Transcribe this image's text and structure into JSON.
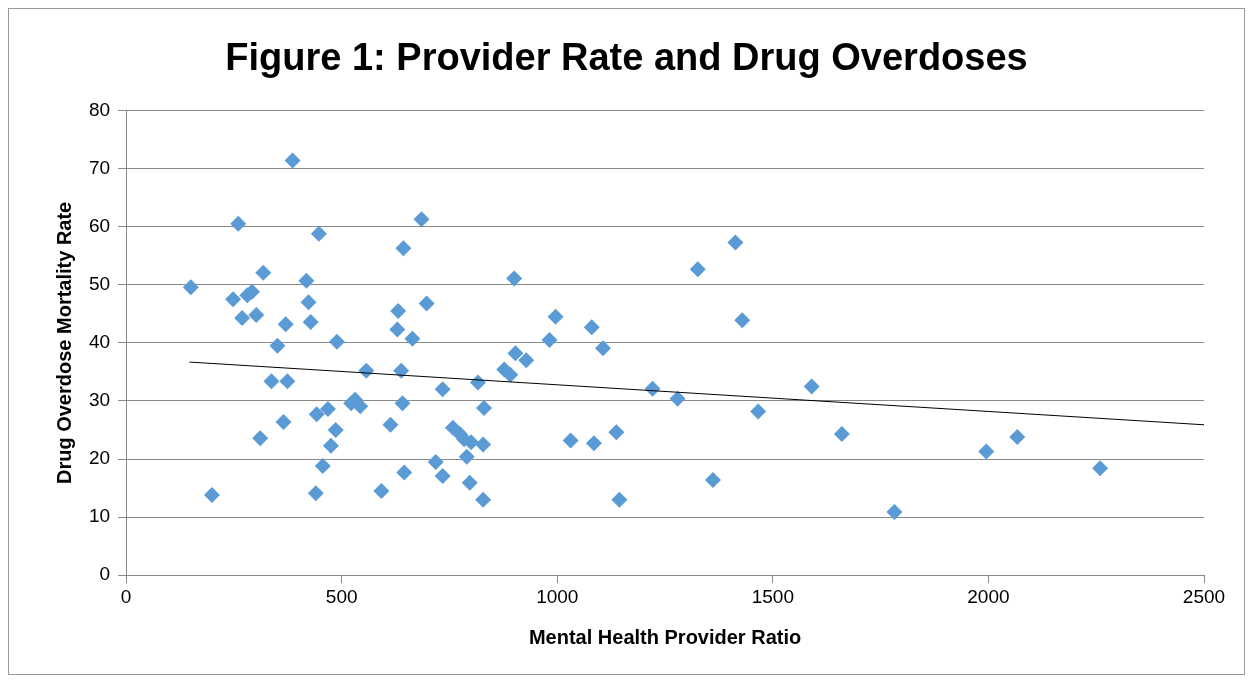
{
  "chart_data": {
    "type": "scatter",
    "title": "Figure 1: Provider Rate and Drug Overdoses",
    "xlabel": "Mental Health Provider Ratio",
    "ylabel": "Drug Overdose Mortality Rate",
    "xlim": [
      0,
      2500
    ],
    "xticks": [
      0,
      500,
      1000,
      1500,
      2000,
      2500
    ],
    "ylim": [
      0,
      80
    ],
    "yticks": [
      0,
      10,
      20,
      30,
      40,
      50,
      60,
      70,
      80
    ],
    "grid": "y",
    "legend": false,
    "marker": "diamond",
    "series": [
      {
        "color": "#5b9bd5",
        "x": [
          150,
          199,
          248,
          260,
          269,
          281,
          292,
          302,
          311,
          318,
          337,
          351,
          365,
          370,
          374,
          386,
          418,
          423,
          428,
          442,
          440,
          447,
          456,
          468,
          475,
          486,
          489,
          557,
          522,
          531,
          543,
          592,
          613,
          629,
          631,
          638,
          641,
          643,
          645,
          664,
          685,
          697,
          718,
          734,
          734,
          758,
          774,
          784,
          790,
          800,
          797,
          816,
          828,
          828,
          830,
          877,
          891,
          900,
          903,
          928,
          982,
          996,
          1031,
          1080,
          1085,
          1106,
          1137,
          1144,
          1221,
          1279,
          1326,
          1361,
          1413,
          1429,
          1466,
          1590,
          1660,
          1782,
          1995,
          2067,
          2259
        ],
        "values": [
          49.6,
          13.8,
          47.5,
          60.5,
          44.3,
          48.2,
          48.8,
          44.8,
          23.6,
          52.1,
          33.4,
          39.5,
          26.4,
          43.2,
          33.4,
          71.4,
          50.7,
          47.0,
          43.6,
          27.7,
          14.1,
          58.8,
          18.8,
          28.6,
          22.3,
          25.0,
          40.2,
          35.2,
          29.6,
          30.2,
          29.1,
          14.5,
          25.9,
          42.3,
          45.5,
          35.2,
          29.6,
          56.3,
          17.7,
          40.7,
          61.3,
          46.8,
          19.5,
          17.1,
          32.0,
          25.4,
          24.3,
          23.4,
          20.4,
          22.9,
          15.9,
          33.2,
          13.0,
          22.5,
          28.8,
          35.4,
          34.5,
          51.1,
          38.2,
          37.0,
          40.5,
          44.5,
          23.2,
          42.7,
          22.7,
          39.1,
          24.6,
          13.0,
          32.1,
          30.4,
          52.7,
          16.4,
          57.3,
          43.9,
          28.2,
          32.5,
          24.3,
          10.9,
          21.3,
          23.8,
          18.4
        ]
      },
      {
        "type": "line",
        "marker": "none",
        "color": "#000000",
        "x": [
          147,
          2500
        ],
        "values": [
          36.7,
          25.9
        ]
      }
    ]
  }
}
